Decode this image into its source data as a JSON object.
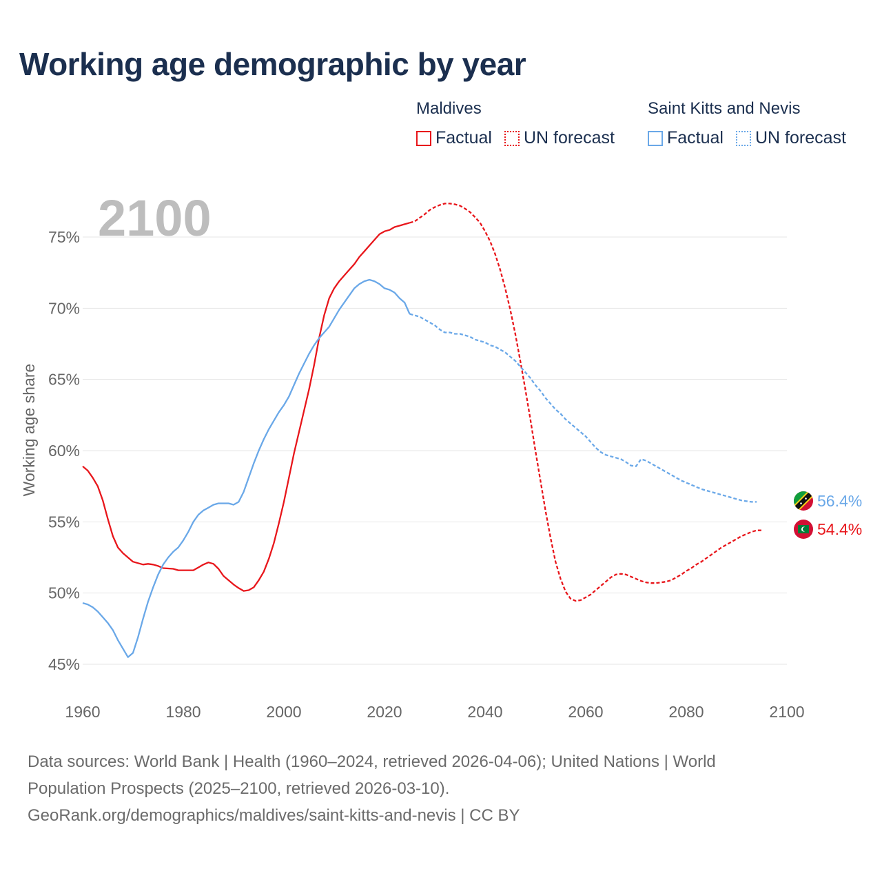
{
  "title": "Working age demographic by year",
  "legend": {
    "groups": [
      {
        "name": "Maldives",
        "color": "#e8161b",
        "factual_label": "Factual",
        "forecast_label": "UN forecast"
      },
      {
        "name": "Saint Kitts and Nevis",
        "color": "#6aa8e8",
        "factual_label": "Factual",
        "forecast_label": "UN forecast"
      }
    ]
  },
  "year_watermark": "2100",
  "chart_data": {
    "type": "line",
    "title": "Working age demographic by year",
    "xlabel": "",
    "ylabel": "Working age share",
    "xlim": [
      1960,
      2100
    ],
    "ylim": [
      44,
      77.5
    ],
    "x_ticks": [
      1960,
      1980,
      2000,
      2020,
      2040,
      2060,
      2080,
      2100
    ],
    "x_tick_labels": [
      "1960",
      "1980",
      "2000",
      "2020",
      "2040",
      "2060",
      "2080",
      "2100"
    ],
    "y_ticks": [
      45,
      50,
      55,
      60,
      65,
      70,
      75
    ],
    "y_tick_labels": [
      "45%",
      "50%",
      "55%",
      "60%",
      "65%",
      "70%",
      "75%"
    ],
    "grid": true,
    "forecast_start_year": 2025,
    "series": [
      {
        "name": "Maldives",
        "color": "#e8161b",
        "end_label": "54.4%",
        "points": [
          [
            1960,
            58.9
          ],
          [
            1961,
            58.6
          ],
          [
            1962,
            58.1
          ],
          [
            1963,
            57.5
          ],
          [
            1964,
            56.5
          ],
          [
            1965,
            55.2
          ],
          [
            1966,
            54.0
          ],
          [
            1967,
            53.2
          ],
          [
            1968,
            52.8
          ],
          [
            1969,
            52.5
          ],
          [
            1970,
            52.2
          ],
          [
            1972,
            52.0
          ],
          [
            1973,
            52.05
          ],
          [
            1974,
            52.0
          ],
          [
            1975,
            51.9
          ],
          [
            1976,
            51.75
          ],
          [
            1978,
            51.7
          ],
          [
            1979,
            51.6
          ],
          [
            1982,
            51.6
          ],
          [
            1983,
            51.8
          ],
          [
            1984,
            52.0
          ],
          [
            1985,
            52.15
          ],
          [
            1986,
            52.05
          ],
          [
            1987,
            51.7
          ],
          [
            1988,
            51.2
          ],
          [
            1990,
            50.6
          ],
          [
            1991,
            50.35
          ],
          [
            1992,
            50.15
          ],
          [
            1993,
            50.2
          ],
          [
            1994,
            50.4
          ],
          [
            1995,
            50.9
          ],
          [
            1996,
            51.5
          ],
          [
            1997,
            52.4
          ],
          [
            1998,
            53.5
          ],
          [
            1999,
            54.9
          ],
          [
            2000,
            56.4
          ],
          [
            2001,
            58.1
          ],
          [
            2002,
            59.8
          ],
          [
            2003,
            61.3
          ],
          [
            2004,
            62.8
          ],
          [
            2005,
            64.3
          ],
          [
            2006,
            66.0
          ],
          [
            2007,
            67.9
          ],
          [
            2008,
            69.5
          ],
          [
            2009,
            70.7
          ],
          [
            2010,
            71.4
          ],
          [
            2011,
            71.9
          ],
          [
            2012,
            72.3
          ],
          [
            2013,
            72.7
          ],
          [
            2014,
            73.1
          ],
          [
            2015,
            73.6
          ],
          [
            2016,
            74.0
          ],
          [
            2017,
            74.4
          ],
          [
            2018,
            74.8
          ],
          [
            2019,
            75.2
          ],
          [
            2020,
            75.4
          ],
          [
            2021,
            75.5
          ],
          [
            2022,
            75.7
          ],
          [
            2023,
            75.8
          ],
          [
            2024,
            75.9
          ],
          [
            2025,
            76.0
          ],
          [
            2026,
            76.1
          ],
          [
            2027,
            76.35
          ],
          [
            2028,
            76.6
          ],
          [
            2029,
            76.9
          ],
          [
            2030,
            77.1
          ],
          [
            2031,
            77.25
          ],
          [
            2032,
            77.35
          ],
          [
            2033,
            77.35
          ],
          [
            2034,
            77.3
          ],
          [
            2035,
            77.2
          ],
          [
            2036,
            77.0
          ],
          [
            2037,
            76.75
          ],
          [
            2038,
            76.4
          ],
          [
            2039,
            76.0
          ],
          [
            2040,
            75.4
          ],
          [
            2041,
            74.7
          ],
          [
            2042,
            73.8
          ],
          [
            2043,
            72.7
          ],
          [
            2044,
            71.4
          ],
          [
            2045,
            69.9
          ],
          [
            2046,
            68.2
          ],
          [
            2047,
            66.3
          ],
          [
            2048,
            64.3
          ],
          [
            2049,
            62.2
          ],
          [
            2050,
            60.0
          ],
          [
            2051,
            57.9
          ],
          [
            2052,
            55.8
          ],
          [
            2053,
            53.9
          ],
          [
            2054,
            52.2
          ],
          [
            2055,
            51.0
          ],
          [
            2056,
            50.1
          ],
          [
            2057,
            49.6
          ],
          [
            2058,
            49.45
          ],
          [
            2059,
            49.5
          ],
          [
            2060,
            49.7
          ],
          [
            2061,
            49.9
          ],
          [
            2062,
            50.2
          ],
          [
            2063,
            50.5
          ],
          [
            2064,
            50.8
          ],
          [
            2065,
            51.1
          ],
          [
            2066,
            51.3
          ],
          [
            2067,
            51.35
          ],
          [
            2068,
            51.3
          ],
          [
            2069,
            51.15
          ],
          [
            2070,
            51.0
          ],
          [
            2071,
            50.85
          ],
          [
            2072,
            50.75
          ],
          [
            2073,
            50.7
          ],
          [
            2074,
            50.7
          ],
          [
            2075,
            50.75
          ],
          [
            2076,
            50.8
          ],
          [
            2077,
            50.9
          ],
          [
            2078,
            51.1
          ],
          [
            2079,
            51.3
          ],
          [
            2080,
            51.55
          ],
          [
            2081,
            51.75
          ],
          [
            2082,
            52.0
          ],
          [
            2083,
            52.2
          ],
          [
            2084,
            52.45
          ],
          [
            2085,
            52.7
          ],
          [
            2086,
            52.95
          ],
          [
            2087,
            53.2
          ],
          [
            2088,
            53.4
          ],
          [
            2089,
            53.6
          ],
          [
            2090,
            53.8
          ],
          [
            2091,
            54.0
          ],
          [
            2092,
            54.15
          ],
          [
            2093,
            54.3
          ],
          [
            2094,
            54.4
          ],
          [
            2095,
            54.4
          ]
        ]
      },
      {
        "name": "Saint Kitts and Nevis",
        "color": "#6aa8e8",
        "end_label": "56.4%",
        "points": [
          [
            1960,
            49.3
          ],
          [
            1961,
            49.2
          ],
          [
            1962,
            49.0
          ],
          [
            1963,
            48.7
          ],
          [
            1964,
            48.3
          ],
          [
            1965,
            47.9
          ],
          [
            1966,
            47.4
          ],
          [
            1967,
            46.7
          ],
          [
            1968,
            46.1
          ],
          [
            1969,
            45.5
          ],
          [
            1970,
            45.8
          ],
          [
            1971,
            46.9
          ],
          [
            1972,
            48.2
          ],
          [
            1973,
            49.4
          ],
          [
            1974,
            50.4
          ],
          [
            1975,
            51.3
          ],
          [
            1976,
            52.0
          ],
          [
            1977,
            52.5
          ],
          [
            1978,
            52.9
          ],
          [
            1979,
            53.2
          ],
          [
            1980,
            53.7
          ],
          [
            1981,
            54.3
          ],
          [
            1982,
            55.0
          ],
          [
            1983,
            55.5
          ],
          [
            1984,
            55.8
          ],
          [
            1985,
            56.0
          ],
          [
            1986,
            56.2
          ],
          [
            1987,
            56.3
          ],
          [
            1988,
            56.3
          ],
          [
            1989,
            56.3
          ],
          [
            1990,
            56.2
          ],
          [
            1991,
            56.4
          ],
          [
            1992,
            57.1
          ],
          [
            1993,
            58.1
          ],
          [
            1994,
            59.1
          ],
          [
            1995,
            60.0
          ],
          [
            1996,
            60.8
          ],
          [
            1997,
            61.5
          ],
          [
            1998,
            62.1
          ],
          [
            1999,
            62.7
          ],
          [
            2000,
            63.2
          ],
          [
            2001,
            63.8
          ],
          [
            2002,
            64.6
          ],
          [
            2003,
            65.4
          ],
          [
            2004,
            66.1
          ],
          [
            2005,
            66.8
          ],
          [
            2006,
            67.4
          ],
          [
            2007,
            67.9
          ],
          [
            2008,
            68.3
          ],
          [
            2009,
            68.7
          ],
          [
            2010,
            69.3
          ],
          [
            2011,
            69.9
          ],
          [
            2012,
            70.4
          ],
          [
            2013,
            70.9
          ],
          [
            2014,
            71.4
          ],
          [
            2015,
            71.7
          ],
          [
            2016,
            71.9
          ],
          [
            2017,
            72.0
          ],
          [
            2018,
            71.9
          ],
          [
            2019,
            71.7
          ],
          [
            2020,
            71.4
          ],
          [
            2021,
            71.3
          ],
          [
            2022,
            71.1
          ],
          [
            2023,
            70.7
          ],
          [
            2024,
            70.4
          ],
          [
            2025,
            69.6
          ],
          [
            2027,
            69.4
          ],
          [
            2028,
            69.2
          ],
          [
            2029,
            69.0
          ],
          [
            2030,
            68.8
          ],
          [
            2031,
            68.5
          ],
          [
            2032,
            68.3
          ],
          [
            2033,
            68.3
          ],
          [
            2034,
            68.2
          ],
          [
            2035,
            68.2
          ],
          [
            2036,
            68.1
          ],
          [
            2037,
            68.0
          ],
          [
            2038,
            67.8
          ],
          [
            2039,
            67.7
          ],
          [
            2040,
            67.6
          ],
          [
            2041,
            67.4
          ],
          [
            2042,
            67.3
          ],
          [
            2043,
            67.1
          ],
          [
            2044,
            66.9
          ],
          [
            2045,
            66.6
          ],
          [
            2046,
            66.3
          ],
          [
            2047,
            65.9
          ],
          [
            2048,
            65.5
          ],
          [
            2049,
            65.1
          ],
          [
            2050,
            64.6
          ],
          [
            2051,
            64.2
          ],
          [
            2052,
            63.7
          ],
          [
            2053,
            63.3
          ],
          [
            2054,
            62.9
          ],
          [
            2055,
            62.6
          ],
          [
            2056,
            62.2
          ],
          [
            2057,
            61.9
          ],
          [
            2058,
            61.6
          ],
          [
            2059,
            61.3
          ],
          [
            2060,
            61.0
          ],
          [
            2061,
            60.6
          ],
          [
            2062,
            60.2
          ],
          [
            2063,
            59.9
          ],
          [
            2064,
            59.7
          ],
          [
            2065,
            59.6
          ],
          [
            2066,
            59.5
          ],
          [
            2067,
            59.4
          ],
          [
            2068,
            59.2
          ],
          [
            2069,
            58.95
          ],
          [
            2070,
            58.9
          ],
          [
            2071,
            59.4
          ],
          [
            2072,
            59.3
          ],
          [
            2073,
            59.1
          ],
          [
            2074,
            58.9
          ],
          [
            2075,
            58.7
          ],
          [
            2076,
            58.5
          ],
          [
            2077,
            58.3
          ],
          [
            2078,
            58.1
          ],
          [
            2079,
            57.9
          ],
          [
            2080,
            57.75
          ],
          [
            2081,
            57.6
          ],
          [
            2082,
            57.45
          ],
          [
            2083,
            57.3
          ],
          [
            2084,
            57.2
          ],
          [
            2085,
            57.1
          ],
          [
            2086,
            57.0
          ],
          [
            2087,
            56.9
          ],
          [
            2088,
            56.8
          ],
          [
            2089,
            56.7
          ],
          [
            2090,
            56.6
          ],
          [
            2091,
            56.5
          ],
          [
            2092,
            56.45
          ],
          [
            2093,
            56.4
          ],
          [
            2094,
            56.4
          ]
        ]
      }
    ]
  },
  "flags": [
    {
      "country": "Saint Kitts and Nevis",
      "icon": "saint-kitts-and-nevis-flag-icon"
    },
    {
      "country": "Maldives",
      "icon": "maldives-flag-icon"
    }
  ],
  "footer": {
    "line1": "Data sources: World Bank | Health (1960–2024, retrieved 2026-04-06); United Nations | World",
    "line2": "Population Prospects (2025–2100, retrieved 2026-03-10).",
    "line3": "GeoRank.org/demographics/maldives/saint-kitts-and-nevis | CC BY"
  }
}
